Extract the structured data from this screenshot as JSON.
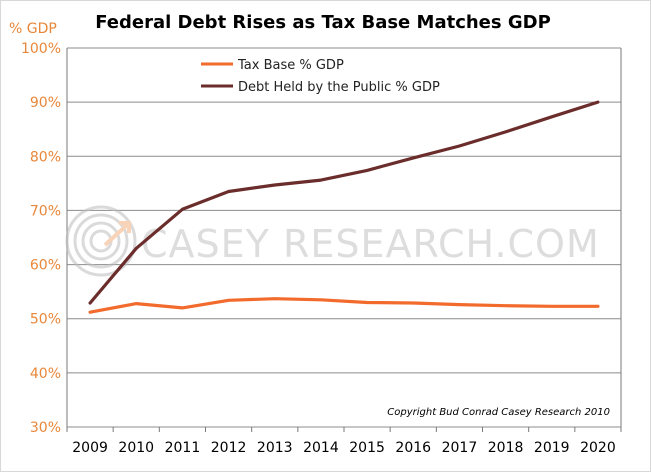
{
  "chart_data": {
    "type": "line",
    "title": "Federal Debt Rises as Tax Base Matches GDP",
    "ylabel": "% GDP",
    "xlabel": "",
    "categories": [
      "2009",
      "2010",
      "2011",
      "2012",
      "2013",
      "2014",
      "2015",
      "2016",
      "2017",
      "2018",
      "2019",
      "2020"
    ],
    "ylim": [
      30,
      100
    ],
    "y_ticks": [
      "30%",
      "40%",
      "50%",
      "60%",
      "70%",
      "80%",
      "90%",
      "100%"
    ],
    "grid": "horizontal",
    "legend_position": "top",
    "series": [
      {
        "name": "Tax Base % GDP",
        "color": "#f26b2d",
        "values": [
          51.2,
          52.8,
          52.0,
          53.4,
          53.7,
          53.5,
          53.0,
          52.9,
          52.6,
          52.4,
          52.3,
          52.3
        ]
      },
      {
        "name": "Debt Held by the Public % GDP",
        "color": "#6b2d2b",
        "values": [
          52.9,
          63.0,
          70.2,
          73.5,
          74.7,
          75.6,
          77.4,
          79.7,
          81.9,
          84.5,
          87.3,
          90.0
        ]
      }
    ],
    "annotations": [
      "Copyright Bud Conrad Casey Research 2010"
    ],
    "watermark": "CASEY RESEARCH.COM"
  }
}
